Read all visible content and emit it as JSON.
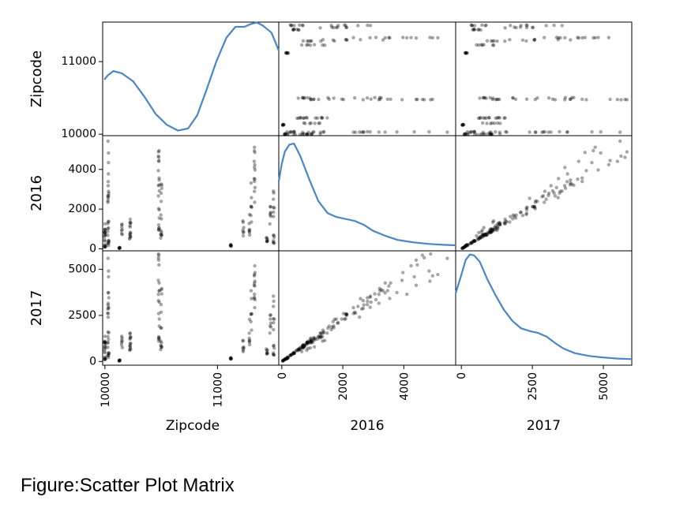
{
  "caption": "Figure:Scatter Plot Matrix",
  "chart_data": {
    "type": "scatter",
    "matrix_type": "scatter-matrix",
    "variables": [
      "Zipcode",
      "2016",
      "2017"
    ],
    "diagonal": "kde",
    "kde_color": "#4b86c4",
    "point_color": "#000000",
    "ranges": {
      "Zipcode": [
        9980,
        11545
      ],
      "2016": [
        -100,
        5700
      ],
      "2017": [
        -200,
        6000
      ]
    },
    "ticks": {
      "Zipcode": [
        10000,
        11000
      ],
      "2016": [
        0,
        2000,
        4000
      ],
      "2017": [
        0,
        2500,
        5000
      ]
    },
    "tick_labels": {
      "Zipcode": [
        "10000",
        "11000"
      ],
      "2016": [
        "0",
        "2000",
        "4000"
      ],
      "2017": [
        "0",
        "2500",
        "5000"
      ]
    },
    "left_ticks": {
      "Zipcode": [
        10000,
        11000
      ],
      "2016": [
        0,
        2000,
        4000
      ],
      "2017": [
        0,
        2500,
        5000
      ]
    },
    "left_tick_labels": {
      "Zipcode": [
        "10000",
        "11000"
      ],
      "2016": [
        "0",
        "2000",
        "4000"
      ],
      "2017": [
        "0",
        "2500",
        "5000"
      ]
    },
    "kde": {
      "Zipcode": {
        "x": [
          10000,
          10025,
          10075,
          10150,
          10250,
          10350,
          10450,
          10550,
          10650,
          10740,
          10820,
          10900,
          10990,
          11080,
          11160,
          11240,
          11300,
          11350,
          11400,
          11440,
          11480,
          11520,
          11545
        ],
        "y": [
          10760,
          10810,
          10870,
          10840,
          10730,
          10520,
          10280,
          10130,
          10050,
          10080,
          10260,
          10600,
          11000,
          11330,
          11480,
          11480,
          11520,
          11540,
          11500,
          11450,
          11400,
          11250,
          11150
        ]
      },
      "2016": {
        "x": [
          -100,
          0,
          100,
          250,
          400,
          600,
          900,
          1200,
          1500,
          1800,
          2100,
          2400,
          2700,
          3000,
          3400,
          3800,
          4300,
          4800,
          5300,
          5700
        ],
        "y": [
          3400,
          4300,
          4900,
          5250,
          5300,
          4700,
          3500,
          2400,
          1800,
          1600,
          1500,
          1400,
          1200,
          900,
          650,
          450,
          330,
          250,
          200,
          180
        ]
      },
      "2017": {
        "x": [
          -200,
          0,
          150,
          300,
          450,
          650,
          900,
          1200,
          1500,
          1800,
          2100,
          2400,
          2700,
          3000,
          3300,
          3600,
          4000,
          4500,
          5000,
          5500,
          6000
        ],
        "y": [
          3700,
          4700,
          5500,
          5800,
          5750,
          5400,
          4500,
          3600,
          2800,
          2200,
          1800,
          1650,
          1550,
          1350,
          1000,
          700,
          450,
          300,
          220,
          160,
          130
        ]
      }
    },
    "zip_clusters": [
      10000,
      10030,
      10130,
      10150,
      10225,
      10480,
      10500,
      11120,
      11230,
      11285,
      11300,
      11330,
      11440,
      11470,
      11500
    ],
    "records": [
      {
        "zip": 10000,
        "v2016": 150,
        "v2017": 180
      },
      {
        "zip": 10000,
        "v2016": 600,
        "v2017": 700
      },
      {
        "zip": 10000,
        "v2016": 900,
        "v2017": 1000
      },
      {
        "zip": 10030,
        "v2016": 2500,
        "v2017": 2900
      },
      {
        "zip": 10030,
        "v2016": 4300,
        "v2017": 4400
      },
      {
        "zip": 10030,
        "v2016": 1100,
        "v2017": 1200
      },
      {
        "zip": 10030,
        "v2016": 300,
        "v2017": 350
      },
      {
        "zip": 10130,
        "v2016": 50,
        "v2017": 60
      },
      {
        "zip": 10150,
        "v2016": 900,
        "v2017": 1000
      },
      {
        "zip": 10225,
        "v2016": 600,
        "v2017": 700
      },
      {
        "zip": 10225,
        "v2016": 1100,
        "v2017": 1200
      },
      {
        "zip": 10480,
        "v2016": 1500,
        "v2017": 1800
      },
      {
        "zip": 10480,
        "v2016": 3500,
        "v2017": 4200
      },
      {
        "zip": 10480,
        "v2016": 4800,
        "v2017": 5700
      },
      {
        "zip": 10500,
        "v2016": 2600,
        "v2017": 3000
      },
      {
        "zip": 10500,
        "v2016": 800,
        "v2017": 900
      },
      {
        "zip": 11120,
        "v2016": 150,
        "v2017": 150
      },
      {
        "zip": 11230,
        "v2016": 1000,
        "v2017": 800
      },
      {
        "zip": 11285,
        "v2016": 1200,
        "v2017": 1500
      },
      {
        "zip": 11300,
        "v2016": 2400,
        "v2017": 3000
      },
      {
        "zip": 11330,
        "v2016": 3000,
        "v2017": 3500
      },
      {
        "zip": 11330,
        "v2016": 5200,
        "v2017": 5000
      },
      {
        "zip": 11440,
        "v2016": 600,
        "v2017": 700
      },
      {
        "zip": 11470,
        "v2016": 1500,
        "v2017": 1800
      },
      {
        "zip": 11500,
        "v2016": 2200,
        "v2017": 2500
      },
      {
        "zip": 11500,
        "v2016": 500,
        "v2017": 600
      }
    ]
  }
}
